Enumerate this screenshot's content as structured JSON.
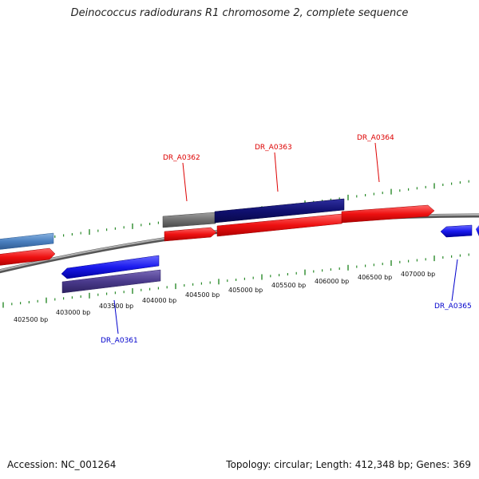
{
  "title": "Deinococcus radiodurans R1 chromosome 2, complete sequence",
  "footer": {
    "accession": "Accession: NC_001264",
    "summary": "Topology: circular; Length: 412,348 bp; Genes: 369"
  },
  "ruler_labels": [
    "402500 bp",
    "403000 bp",
    "403500 bp",
    "404000 bp",
    "404500 bp",
    "405000 bp",
    "405500 bp",
    "406000 bp",
    "406500 bp",
    "407000 bp"
  ],
  "gene_labels": [
    {
      "text": "DR_A0361",
      "color": "#0000cc"
    },
    {
      "text": "DR_A0362",
      "color": "#dd0000"
    },
    {
      "text": "DR_A0363",
      "color": "#dd0000"
    },
    {
      "text": "DR_A0364",
      "color": "#dd0000"
    },
    {
      "text": "DR_A0365",
      "color": "#0000cc"
    }
  ],
  "colors": {
    "backbone": "#8a8a8a",
    "forward_gene": "#ee1111",
    "reverse_gene": "#1a1aee",
    "forward_cds_dark": "#101070",
    "reverse_cds_purple": "#4a3a8c",
    "light_blue_feature": "#4a7fbf",
    "grey_feature": "#707070",
    "tick": "#2a8a2a"
  }
}
